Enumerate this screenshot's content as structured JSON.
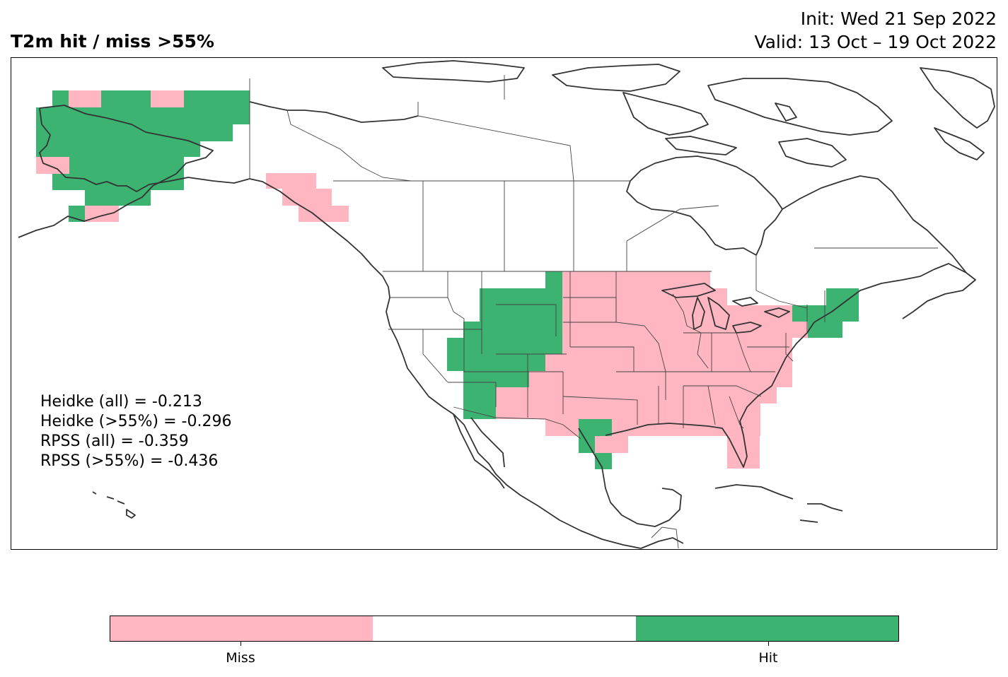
{
  "title": "T2m hit / miss  >55%",
  "init_line": "Init: Wed 21 Sep 2022",
  "valid_line": "Valid: 13 Oct – 19 Oct 2022",
  "stats": [
    "Heidke (all) = -0.213",
    "Heidke (>55%) = -0.296",
    "RPSS (all) = -0.359",
    "RPSS (>55%) = -0.436"
  ],
  "colorbar": {
    "segments": [
      "#ffb6c1",
      "#ffffff",
      "#3cb371"
    ],
    "labels": [
      "Miss",
      "Hit"
    ]
  },
  "colors": {
    "miss": "#ffb6c1",
    "hit": "#3cb371",
    "coastline": "#333333"
  }
}
